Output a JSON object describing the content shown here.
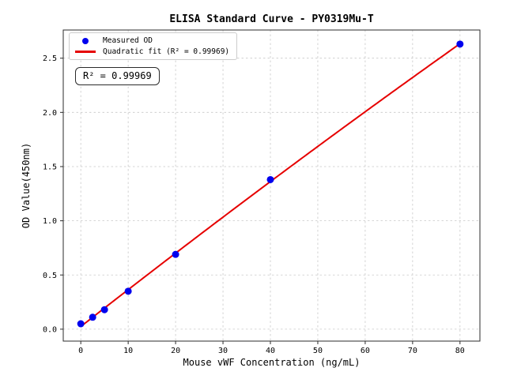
{
  "figure": {
    "title": "ELISA Standard Curve - PY0319Mu-T",
    "annotation": "R² = 0.99969"
  },
  "chart_data": {
    "type": "scatter",
    "title": "ELISA Standard Curve - PY0319Mu-T",
    "xlabel": "Mouse vWF Concentration (ng/mL)",
    "ylabel": "OD Value(450nm)",
    "x": [
      0,
      2.5,
      5,
      10,
      20,
      40,
      80
    ],
    "y": [
      0.05,
      0.11,
      0.18,
      0.35,
      0.69,
      1.38,
      2.63
    ],
    "fit": {
      "type": "quadratic",
      "r_squared": 0.99969,
      "x_range": [
        0,
        80
      ]
    },
    "xlim": [
      -3.7,
      84.2
    ],
    "ylim": [
      -0.11,
      2.76
    ],
    "xticks": [
      0,
      10,
      20,
      30,
      40,
      50,
      60,
      70,
      80
    ],
    "yticks": [
      0.0,
      0.5,
      1.0,
      1.5,
      2.0,
      2.5
    ],
    "grid": true,
    "grid_style": "dashed",
    "legend": {
      "position": "upper left",
      "entries": [
        {
          "label": "Measured OD",
          "marker": "dot",
          "color": "#0000ee"
        },
        {
          "label": "Quadratic fit (R² = 0.99969)",
          "marker": "line",
          "color": "#e60000"
        }
      ]
    },
    "colors": {
      "points": "#0000ee",
      "fit_line": "#e60000",
      "grid": "#c9c9c9",
      "frame": "#2b2b2b"
    }
  }
}
